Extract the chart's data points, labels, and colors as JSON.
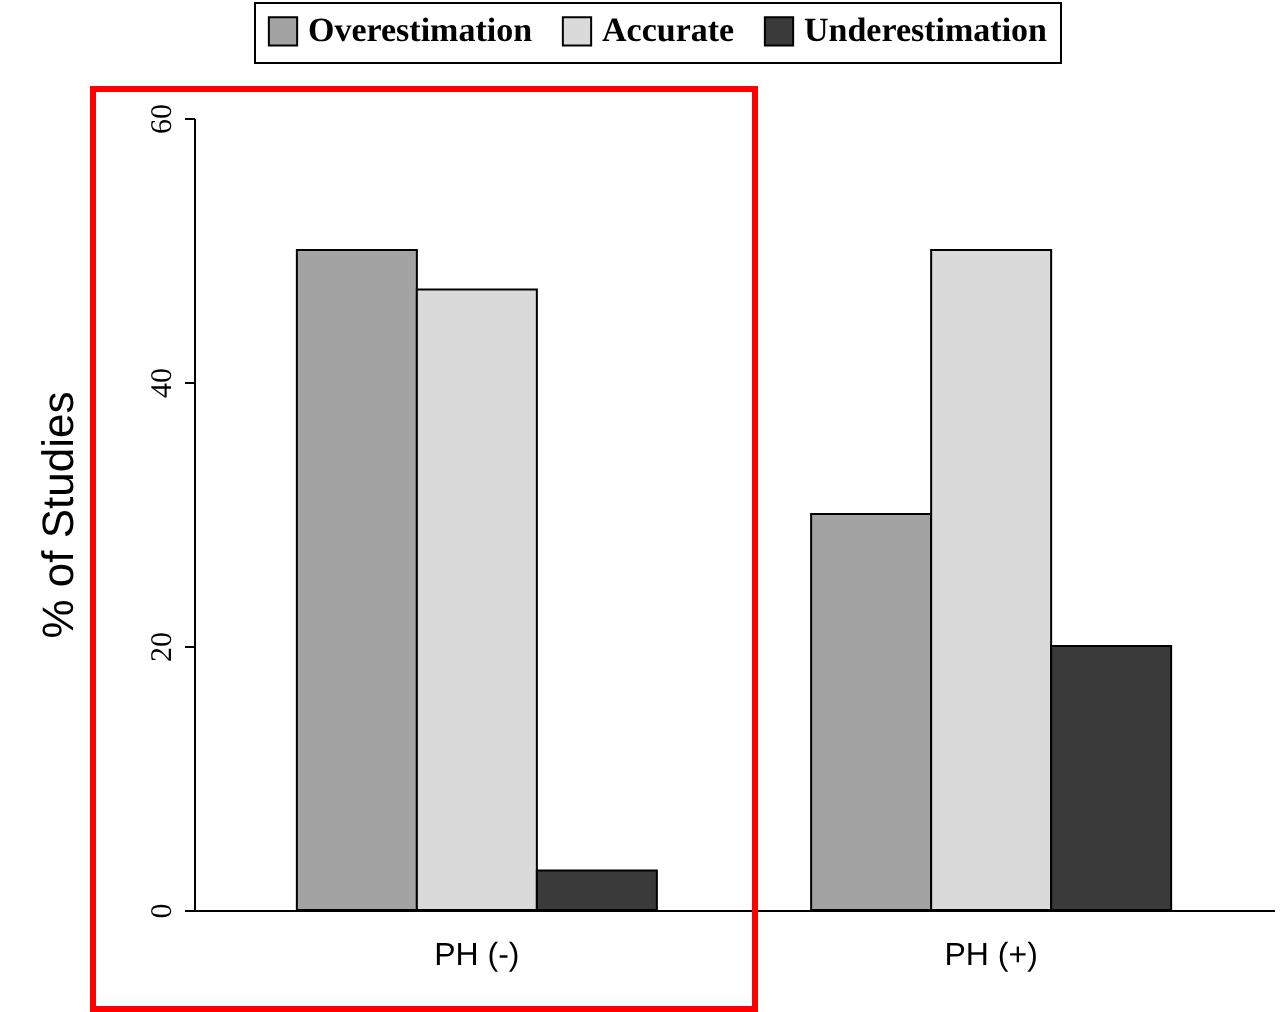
{
  "chart_data": {
    "type": "bar",
    "ylabel": "% of Studies",
    "categories": [
      "PH (-)",
      "PH (+)"
    ],
    "series": [
      {
        "name": "Overestimation",
        "color": "#a3a3a3",
        "values": [
          50,
          30
        ]
      },
      {
        "name": "Accurate",
        "color": "#dadada",
        "values": [
          47,
          50
        ]
      },
      {
        "name": "Underestimation",
        "color": "#3a3a3a",
        "values": [
          3,
          20
        ]
      }
    ],
    "ylim": [
      0,
      60
    ],
    "yticks": [
      0,
      20,
      40,
      60
    ],
    "legend": "top",
    "grid": false
  }
}
